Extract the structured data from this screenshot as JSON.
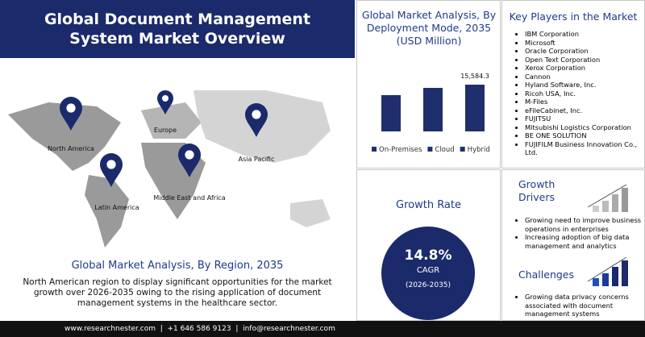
{
  "header": {
    "title": "Global Document Management System Market Overview"
  },
  "map": {
    "regions": [
      "North America",
      "Europe",
      "Asia Pacific",
      "Middle East and Africa",
      "Latin America"
    ],
    "title": "Global Market Analysis, By Region, 2035",
    "text": "North American region to display significant opportunities  for the market growth over 2026-2035 owing to the rising application  of document management systems in the healthcare sector."
  },
  "chart_data": {
    "type": "bar",
    "title": "Global Market Analysis, By Deployment Mode, 2035 (USD Million)",
    "categories": [
      "On-Premises",
      "Cloud",
      "Hybrid"
    ],
    "values": [
      12090,
      14510,
      15584.3
    ],
    "value_labels": [
      null,
      null,
      "15,584.3"
    ],
    "color": "#1f2f6e"
  },
  "key_players": {
    "title": "Key Players in the Market",
    "items": [
      "IBM Corporation",
      "Microsoft",
      "Oracle Corporation",
      "Open Text Corporation",
      "Xerox Corporation",
      "Cannon",
      "Hyland Software, Inc.",
      "Ricoh USA, Inc.",
      "M-Files",
      "eFileCabinet, Inc.",
      "FUJITSU",
      "Mitsubishi Logistics Corporation",
      "BE ONE SOLUTION",
      "FUJIFILM Business Innovation Co., Ltd."
    ]
  },
  "growth_rate": {
    "title": "Growth Rate",
    "value": "14.8%",
    "label": "CAGR",
    "period": "(2026-2035)"
  },
  "growth_drivers": {
    "title": "Growth Drivers",
    "items": [
      "Growing need to improve business operations in enterprises",
      "Increasing adoption of big data management  and analytics"
    ]
  },
  "challenges": {
    "title": "Challenges",
    "items": [
      "Growing data privacy concerns associated with  document management systems"
    ]
  },
  "footer": {
    "text": "www.researchnester.com  |  +1 646 586 9123  |  info@researchnester.com"
  }
}
